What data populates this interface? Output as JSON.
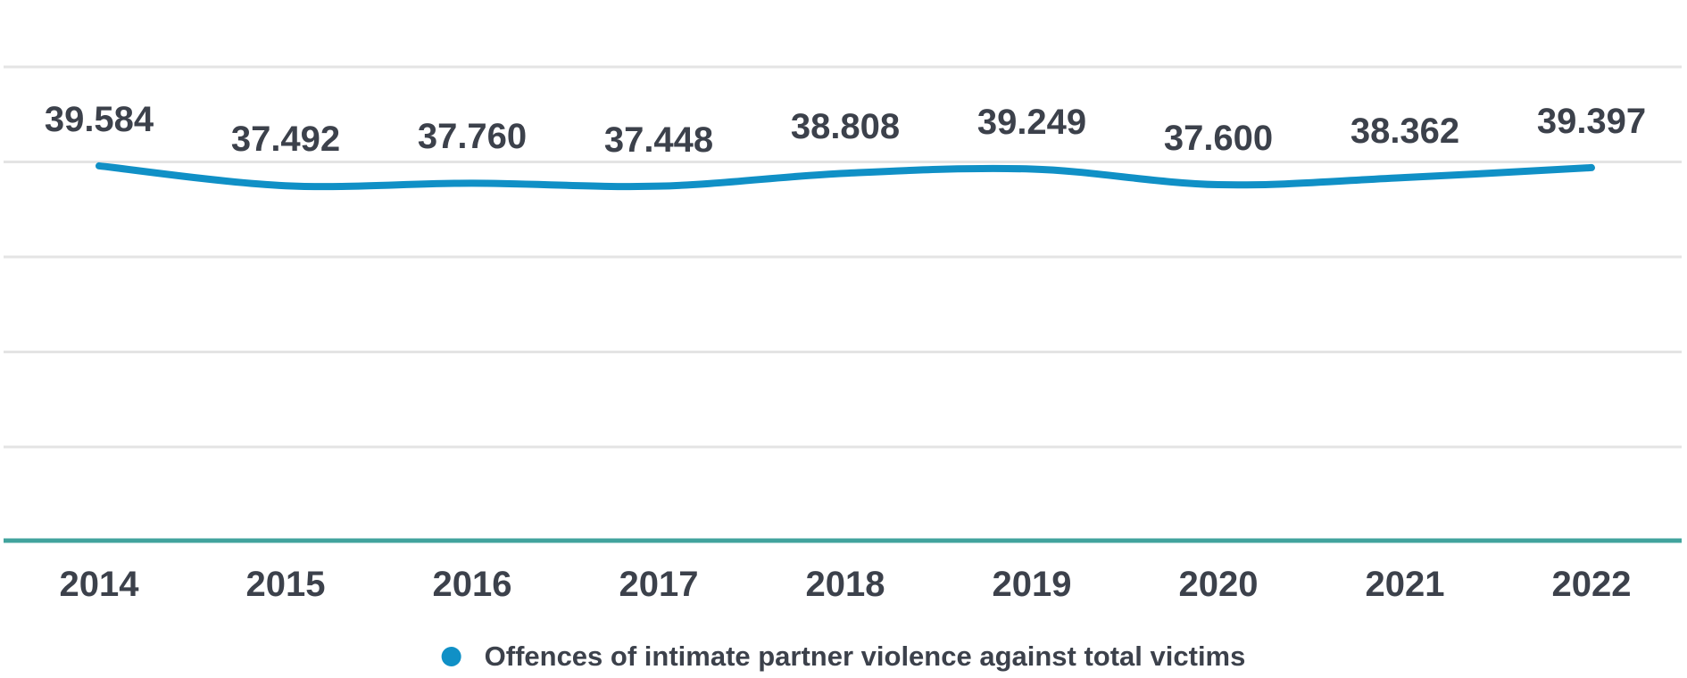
{
  "chart_data": {
    "type": "line",
    "title": "",
    "xlabel": "",
    "ylabel": "",
    "categories": [
      "2014",
      "2015",
      "2016",
      "2017",
      "2018",
      "2019",
      "2020",
      "2021",
      "2022"
    ],
    "series": [
      {
        "name": "Offences of intimate partner violence against total victims",
        "values": [
          39584,
          37492,
          37760,
          37448,
          38808,
          39249,
          37600,
          38362,
          39397
        ],
        "value_labels": [
          "39.584",
          "37.492",
          "37.760",
          "37.448",
          "38.808",
          "39.249",
          "37.600",
          "38.362",
          "39.397"
        ]
      }
    ],
    "ylim": [
      0,
      50000
    ],
    "grid_step": 10000,
    "grid": "horizontal",
    "legend_position": "bottom-center",
    "line_style": "smooth-curved"
  },
  "colors": {
    "line": "#1090c6",
    "legend_dot": "#1090c6",
    "axis_baseline": "#41a39d",
    "gridline": "#e4e4e4",
    "text": "#3c414b",
    "background": "#ffffff"
  }
}
